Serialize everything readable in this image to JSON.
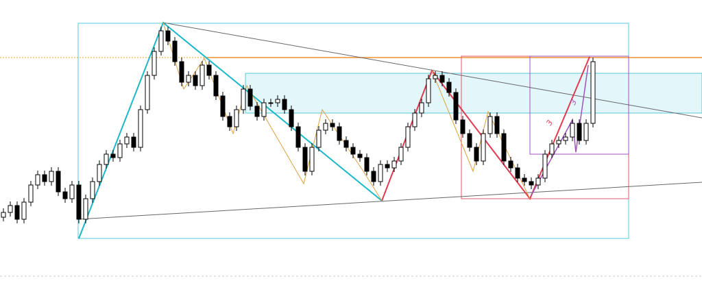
{
  "chart_data": {
    "type": "candlestick",
    "annotations": [
      "3",
      "3"
    ],
    "ylim": [
      0,
      432
    ],
    "up_color": "#ffffff",
    "down_color": "#000000",
    "open": [
      115,
      122,
      132,
      112,
      137,
      162,
      177,
      167,
      182,
      152,
      142,
      162,
      112,
      142,
      167,
      192,
      207,
      202,
      222,
      232,
      217,
      272,
      322,
      357,
      387,
      372,
      342,
      312,
      322,
      307,
      337,
      322,
      292,
      262,
      247,
      272,
      302,
      277,
      262,
      282,
      282,
      287,
      272,
      247,
      217,
      182,
      217,
      242,
      252,
      247,
      227,
      217,
      207,
      202,
      182,
      167,
      192,
      187,
      197,
      217,
      247,
      267,
      282,
      317,
      322,
      312,
      297,
      257,
      237,
      217,
      197,
      237,
      262,
      237,
      197,
      187,
      172,
      167,
      162,
      172,
      207,
      222,
      227,
      232,
      252,
      227,
      252
    ],
    "high": [
      128,
      138,
      138,
      143,
      168,
      183,
      183,
      188,
      188,
      158,
      168,
      168,
      148,
      173,
      198,
      213,
      213,
      228,
      238,
      238,
      278,
      328,
      363,
      393,
      393,
      378,
      348,
      328,
      328,
      343,
      343,
      328,
      298,
      268,
      278,
      308,
      308,
      283,
      288,
      288,
      293,
      293,
      278,
      253,
      223,
      223,
      248,
      258,
      258,
      253,
      233,
      223,
      213,
      208,
      188,
      198,
      198,
      203,
      223,
      253,
      273,
      288,
      323,
      328,
      328,
      318,
      303,
      263,
      243,
      223,
      243,
      268,
      268,
      243,
      203,
      193,
      178,
      173,
      178,
      213,
      228,
      233,
      238,
      258,
      258,
      258,
      348
    ],
    "low": [
      109,
      116,
      106,
      106,
      131,
      156,
      161,
      161,
      146,
      136,
      136,
      106,
      106,
      136,
      161,
      186,
      196,
      196,
      216,
      211,
      211,
      266,
      316,
      351,
      366,
      336,
      306,
      306,
      301,
      301,
      316,
      286,
      256,
      241,
      241,
      266,
      271,
      256,
      256,
      276,
      276,
      266,
      241,
      211,
      176,
      176,
      211,
      236,
      241,
      221,
      211,
      201,
      196,
      176,
      161,
      161,
      181,
      181,
      191,
      211,
      241,
      261,
      276,
      311,
      306,
      291,
      251,
      231,
      211,
      191,
      191,
      231,
      231,
      191,
      181,
      166,
      161,
      156,
      156,
      166,
      201,
      216,
      221,
      226,
      221,
      221,
      246
    ],
    "close": [
      122,
      132,
      112,
      137,
      162,
      177,
      167,
      182,
      152,
      142,
      162,
      112,
      142,
      167,
      192,
      207,
      202,
      222,
      232,
      217,
      272,
      322,
      357,
      387,
      372,
      342,
      312,
      322,
      307,
      337,
      322,
      292,
      262,
      247,
      272,
      302,
      277,
      262,
      282,
      282,
      287,
      272,
      247,
      217,
      182,
      217,
      242,
      252,
      247,
      227,
      217,
      207,
      202,
      182,
      167,
      192,
      187,
      197,
      217,
      247,
      267,
      282,
      317,
      322,
      312,
      297,
      257,
      237,
      217,
      197,
      237,
      262,
      237,
      197,
      187,
      172,
      167,
      162,
      172,
      207,
      222,
      227,
      232,
      252,
      227,
      252,
      342
    ]
  }
}
